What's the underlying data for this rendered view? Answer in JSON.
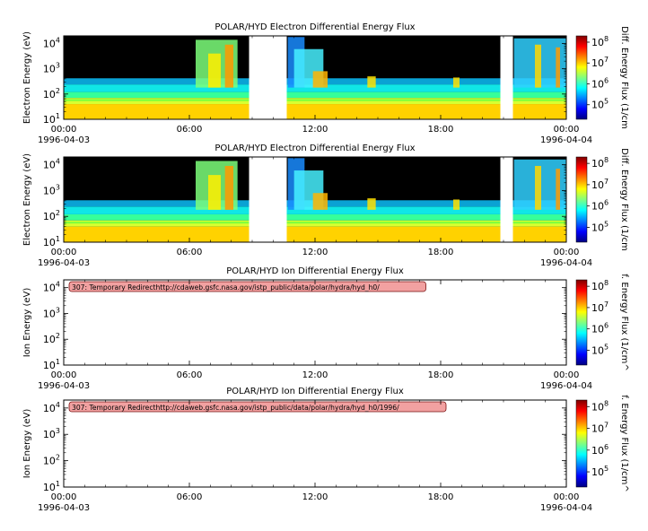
{
  "chart_data": [
    {
      "type": "heatmap",
      "title": "POLAR/HYD  Electron Differential Energy Flux",
      "ylabel": "Electron Energy (eV)",
      "colorbar_label": "Diff. Energy Flux (1/cm",
      "y_scale": "log",
      "ylim": [
        10,
        20000
      ],
      "y_ticks": [
        {
          "value": 10,
          "exp": "1"
        },
        {
          "value": 100,
          "exp": "2"
        },
        {
          "value": 1000,
          "exp": "3"
        },
        {
          "value": 10000,
          "exp": "4"
        }
      ],
      "x_ticks": [
        "00:00",
        "06:00",
        "12:00",
        "18:00",
        "00:00"
      ],
      "x_ticks_hours": [
        0,
        6,
        12,
        18,
        24
      ],
      "date_start": "1996-04-03",
      "date_end": "1996-04-04",
      "colorbar_ticks": [
        {
          "value": 100000,
          "exp": "5"
        },
        {
          "value": 1000000,
          "exp": "6"
        },
        {
          "value": 10000000,
          "exp": "7"
        },
        {
          "value": 100000000,
          "exp": "8"
        }
      ],
      "colorbar_range": [
        20000,
        200000000
      ],
      "data_gaps_hours": [
        [
          8.85,
          10.65
        ],
        [
          20.85,
          21.45
        ]
      ],
      "error_message": ""
    },
    {
      "type": "heatmap",
      "title": "POLAR/HYD  Electron Differential Energy Flux",
      "ylabel": "Electron Energy (eV)",
      "colorbar_label": "Diff. Energy Flux (1/cm",
      "y_scale": "log",
      "ylim": [
        10,
        20000
      ],
      "y_ticks": [
        {
          "value": 10,
          "exp": "1"
        },
        {
          "value": 100,
          "exp": "2"
        },
        {
          "value": 1000,
          "exp": "3"
        },
        {
          "value": 10000,
          "exp": "4"
        }
      ],
      "x_ticks": [
        "00:00",
        "06:00",
        "12:00",
        "18:00",
        "00:00"
      ],
      "x_ticks_hours": [
        0,
        6,
        12,
        18,
        24
      ],
      "date_start": "1996-04-03",
      "date_end": "1996-04-04",
      "colorbar_ticks": [
        {
          "value": 100000,
          "exp": "5"
        },
        {
          "value": 1000000,
          "exp": "6"
        },
        {
          "value": 10000000,
          "exp": "7"
        },
        {
          "value": 100000000,
          "exp": "8"
        }
      ],
      "colorbar_range": [
        20000,
        200000000
      ],
      "data_gaps_hours": [
        [
          8.85,
          10.65
        ],
        [
          20.85,
          21.45
        ]
      ],
      "error_message": ""
    },
    {
      "type": "heatmap",
      "title": "POLAR/HYD  Ion Differential Energy Flux",
      "ylabel": "Ion Energy (eV)",
      "colorbar_label": "f. Energy Flux (1/cm^",
      "y_scale": "log",
      "ylim": [
        10,
        20000
      ],
      "y_ticks": [
        {
          "value": 10,
          "exp": "1"
        },
        {
          "value": 100,
          "exp": "2"
        },
        {
          "value": 1000,
          "exp": "3"
        },
        {
          "value": 10000,
          "exp": "4"
        }
      ],
      "x_ticks": [
        "00:00",
        "06:00",
        "12:00",
        "18:00",
        "00:00"
      ],
      "x_ticks_hours": [
        0,
        6,
        12,
        18,
        24
      ],
      "date_start": "1996-04-03",
      "date_end": "1996-04-04",
      "colorbar_ticks": [
        {
          "value": 100000,
          "exp": "5"
        },
        {
          "value": 1000000,
          "exp": "6"
        },
        {
          "value": 10000000,
          "exp": "7"
        },
        {
          "value": 100000000,
          "exp": "8"
        }
      ],
      "colorbar_range": [
        20000,
        200000000
      ],
      "data_gaps_hours": [],
      "error_message": "307: Temporary Redirecthttp://cdaweb.gsfc.nasa.gov/istp_public/data/polar/hydra/hyd_h0/"
    },
    {
      "type": "heatmap",
      "title": "POLAR/HYD  Ion Differential Energy Flux",
      "ylabel": "Ion Energy (eV)",
      "colorbar_label": "f. Energy Flux (1/cm^",
      "y_scale": "log",
      "ylim": [
        10,
        20000
      ],
      "y_ticks": [
        {
          "value": 10,
          "exp": "1"
        },
        {
          "value": 100,
          "exp": "2"
        },
        {
          "value": 1000,
          "exp": "3"
        },
        {
          "value": 10000,
          "exp": "4"
        }
      ],
      "x_ticks": [
        "00:00",
        "06:00",
        "12:00",
        "18:00",
        "00:00"
      ],
      "x_ticks_hours": [
        0,
        6,
        12,
        18,
        24
      ],
      "date_start": "1996-04-03",
      "date_end": "1996-04-04",
      "colorbar_ticks": [
        {
          "value": 100000,
          "exp": "5"
        },
        {
          "value": 1000000,
          "exp": "6"
        },
        {
          "value": 10000000,
          "exp": "7"
        },
        {
          "value": 100000000,
          "exp": "8"
        }
      ],
      "colorbar_range": [
        20000,
        200000000
      ],
      "data_gaps_hours": [],
      "error_message": "307: Temporary Redirecthttp://cdaweb.gsfc.nasa.gov/istp_public/data/polar/hydra/hyd_h0/1996/"
    }
  ]
}
